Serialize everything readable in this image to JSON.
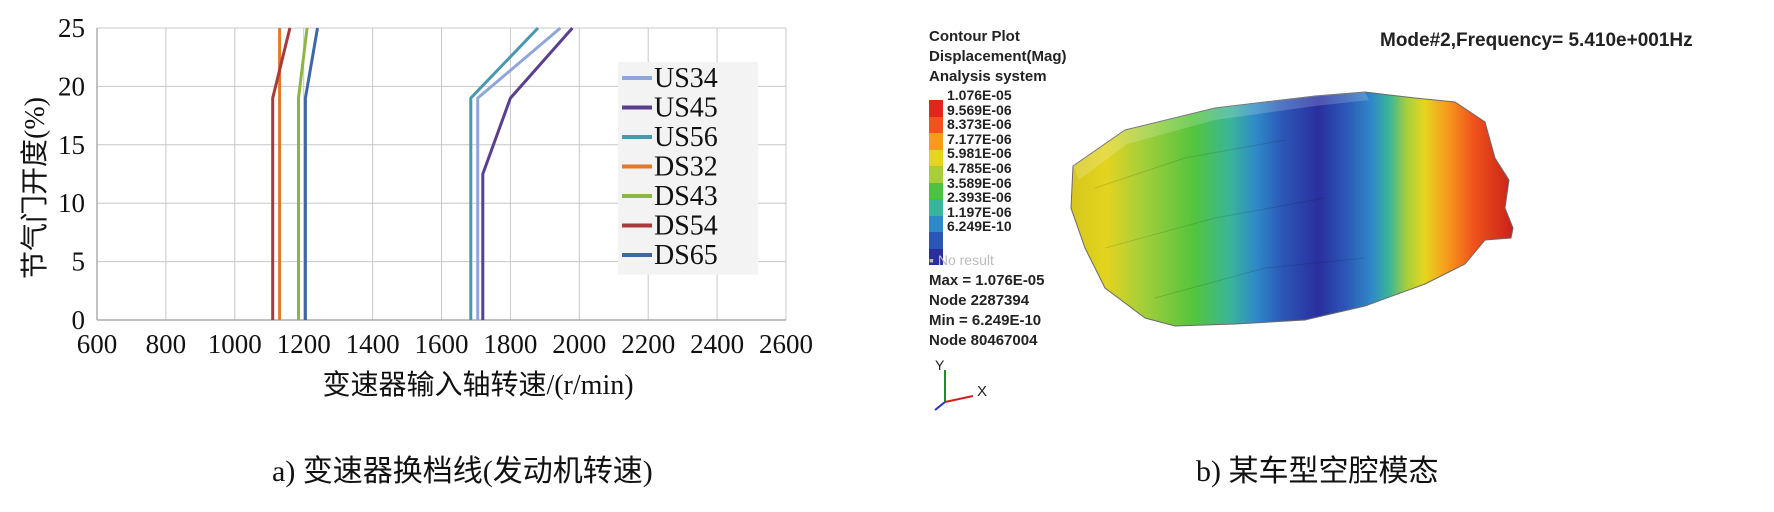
{
  "chart_data": {
    "type": "line",
    "title": "",
    "xlabel": "变速器输入轴转速/(r/min)",
    "ylabel": "节气门开度(%)",
    "xlim": [
      600,
      2600
    ],
    "ylim": [
      0,
      25
    ],
    "xticks": [
      "600",
      "800",
      "1000",
      "1200",
      "1400",
      "1600",
      "1800",
      "2000",
      "2200",
      "2400",
      "2600"
    ],
    "yticks": [
      "0",
      "5",
      "10",
      "15",
      "20",
      "25"
    ],
    "grid": true,
    "legend_position": "right",
    "series": [
      {
        "name": "US34",
        "color": "#8ea6d8",
        "points": [
          [
            1705,
            0
          ],
          [
            1705,
            19
          ],
          [
            1945,
            25
          ]
        ]
      },
      {
        "name": "US45",
        "color": "#5b3f8f",
        "points": [
          [
            1720,
            0
          ],
          [
            1720,
            12.5
          ],
          [
            1800,
            19
          ],
          [
            1980,
            25
          ]
        ]
      },
      {
        "name": "US56",
        "color": "#4a97b0",
        "points": [
          [
            1685,
            0
          ],
          [
            1685,
            19
          ],
          [
            1880,
            25
          ]
        ]
      },
      {
        "name": "DS32",
        "color": "#e07a2b",
        "points": [
          [
            1130,
            0
          ],
          [
            1130,
            20
          ],
          [
            1130,
            25
          ]
        ]
      },
      {
        "name": "DS43",
        "color": "#8db545",
        "points": [
          [
            1185,
            0
          ],
          [
            1185,
            19
          ],
          [
            1210,
            25
          ]
        ]
      },
      {
        "name": "DS54",
        "color": "#a83a3a",
        "points": [
          [
            1110,
            0
          ],
          [
            1110,
            19
          ],
          [
            1160,
            25
          ]
        ]
      },
      {
        "name": "DS65",
        "color": "#3d67a8",
        "points": [
          [
            1205,
            0
          ],
          [
            1205,
            19
          ],
          [
            1240,
            25
          ]
        ]
      }
    ]
  },
  "captions": {
    "a": "a) 变速器换档线(发动机转速)",
    "b": "b) 某车型空腔模态"
  },
  "contour": {
    "header": [
      "Contour Plot",
      "Displacement(Mag)",
      "Analysis system"
    ],
    "mode_label": "Mode#2,Frequency=  5.410e+001Hz",
    "levels": [
      "1.076E-05",
      "9.569E-06",
      "8.373E-06",
      "7.177E-06",
      "5.981E-06",
      "4.785E-06",
      "3.589E-06",
      "2.393E-06",
      "1.197E-06",
      "6.249E-10"
    ],
    "level_colors": [
      "#e3261d",
      "#f0531b",
      "#f79b1c",
      "#e6d51f",
      "#a8cf3a",
      "#4cc23e",
      "#38b59a",
      "#2f88c8",
      "#2b56b6",
      "#2a2f9e"
    ],
    "no_result": "No result",
    "stats": [
      "Max = 1.076E-05",
      "Node 2287394",
      "Min = 6.249E-10",
      "Node 80467004"
    ],
    "axis_y": "Y",
    "axis_x": "X"
  }
}
